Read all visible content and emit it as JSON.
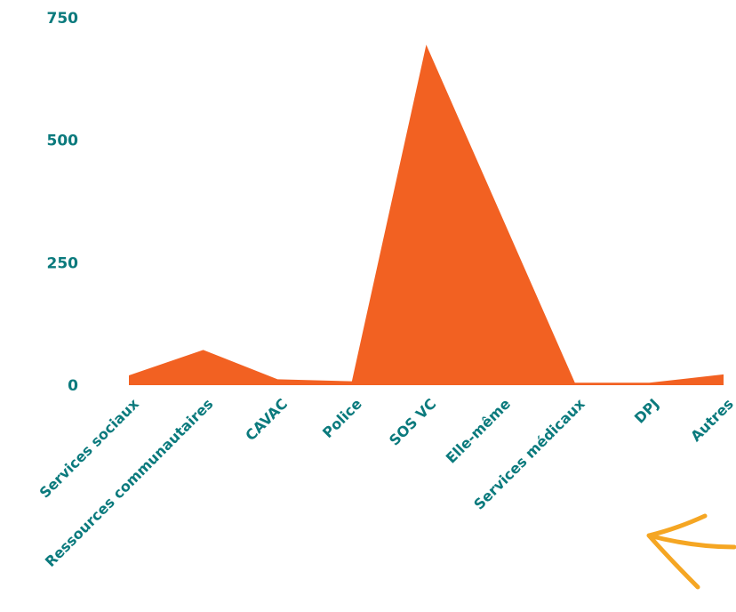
{
  "chart_data": {
    "type": "area",
    "title": "",
    "xlabel": "",
    "ylabel": "",
    "categories": [
      "Services sociaux",
      "Ressources communautaires",
      "CAVAC",
      "Police",
      "SOS VC",
      "Elle-même",
      "Services médicaux",
      "DPJ",
      "Autres"
    ],
    "values": [
      20,
      72,
      12,
      8,
      695,
      350,
      5,
      5,
      22
    ],
    "ylim": [
      0,
      750
    ],
    "yticks": [
      0,
      250,
      500,
      750
    ],
    "ytick_labels": [
      "0",
      "250",
      "500",
      "750"
    ],
    "grid": false,
    "legend": "none"
  },
  "colors": {
    "area_fill": "#f26122",
    "tick_text": "#0b7a7d",
    "arrow": "#f5a623"
  },
  "decoration": {
    "arrow_icon": "curved-arrow-icon"
  }
}
